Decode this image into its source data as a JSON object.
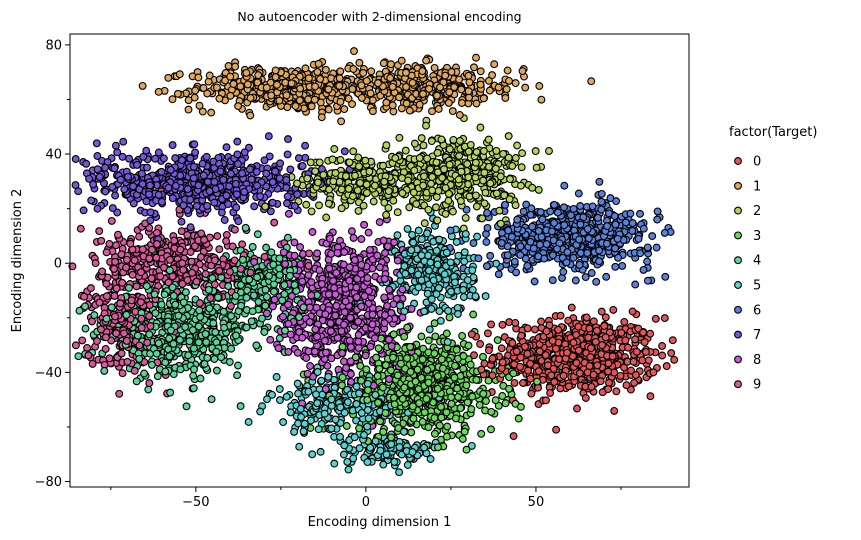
{
  "chart_data": {
    "type": "scatter",
    "title": "No autoencoder with 2-dimensional encoding",
    "xlabel": "Encoding dimension 1",
    "ylabel": "Encoding dimension 2",
    "xlim": [
      -87,
      95
    ],
    "ylim": [
      -82,
      84
    ],
    "xticks": [
      -50,
      0,
      50
    ],
    "yticks": [
      -80,
      -40,
      0,
      40,
      80
    ],
    "xtick_labels": [
      "−50",
      "0",
      "50"
    ],
    "ytick_labels": [
      "−80",
      "−40",
      "0",
      "40",
      "80"
    ],
    "grid": false,
    "legend_title": "factor(Target)",
    "legend_position": "right",
    "series": [
      {
        "name": "0",
        "color": "#e0565a",
        "clusters": [
          {
            "cx": 62,
            "cy": -34,
            "sx": 12,
            "sy": 7,
            "n": 650
          }
        ]
      },
      {
        "name": "1",
        "color": "#e0a85a",
        "clusters": [
          {
            "cx": -25,
            "cy": 64,
            "sx": 13,
            "sy": 4,
            "n": 380
          },
          {
            "cx": 15,
            "cy": 65,
            "sx": 16,
            "sy": 4,
            "n": 380
          }
        ]
      },
      {
        "name": "2",
        "color": "#b5d55a",
        "clusters": [
          {
            "cx": 0,
            "cy": 30,
            "sx": 10,
            "sy": 5,
            "n": 280
          },
          {
            "cx": 28,
            "cy": 33,
            "sx": 9,
            "sy": 7,
            "n": 380
          }
        ]
      },
      {
        "name": "3",
        "color": "#6ad85a",
        "clusters": [
          {
            "cx": 17,
            "cy": -45,
            "sx": 11,
            "sy": 9,
            "n": 650
          }
        ]
      },
      {
        "name": "4",
        "color": "#5ad49a",
        "clusters": [
          {
            "cx": -55,
            "cy": -25,
            "sx": 11,
            "sy": 8,
            "n": 480
          },
          {
            "cx": -30,
            "cy": -8,
            "sx": 6,
            "sy": 7,
            "n": 220
          }
        ]
      },
      {
        "name": "5",
        "color": "#5ad0d0",
        "clusters": [
          {
            "cx": 20,
            "cy": -3,
            "sx": 6,
            "sy": 8,
            "n": 300
          },
          {
            "cx": -8,
            "cy": -52,
            "sx": 10,
            "sy": 5,
            "n": 220
          },
          {
            "cx": 5,
            "cy": -68,
            "sx": 8,
            "sy": 3,
            "n": 120
          }
        ]
      },
      {
        "name": "6",
        "color": "#5a82d8",
        "clusters": [
          {
            "cx": 60,
            "cy": 10,
            "sx": 12,
            "sy": 6,
            "n": 600
          }
        ]
      },
      {
        "name": "7",
        "color": "#7558d8",
        "clusters": [
          {
            "cx": -50,
            "cy": 30,
            "sx": 16,
            "sy": 6,
            "n": 600
          }
        ]
      },
      {
        "name": "8",
        "color": "#c85ad8",
        "clusters": [
          {
            "cx": -8,
            "cy": -15,
            "sx": 10,
            "sy": 13,
            "n": 650
          }
        ]
      },
      {
        "name": "9",
        "color": "#d85a9a",
        "clusters": [
          {
            "cx": -55,
            "cy": 0,
            "sx": 12,
            "sy": 7,
            "n": 380
          },
          {
            "cx": -72,
            "cy": -22,
            "sx": 5,
            "sy": 9,
            "n": 200
          }
        ]
      }
    ]
  }
}
